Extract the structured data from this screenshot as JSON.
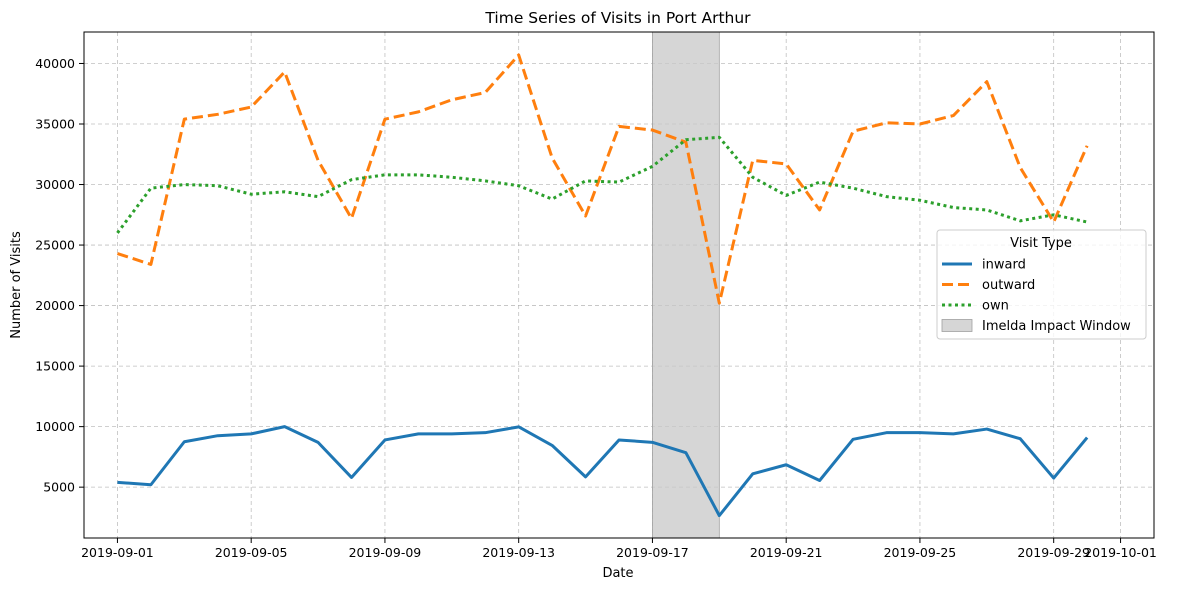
{
  "chart_data": {
    "type": "line",
    "title": "Time Series of Visits in Port Arthur",
    "xlabel": "Date",
    "ylabel": "Number of Visits",
    "x": [
      "2019-09-01",
      "2019-09-02",
      "2019-09-03",
      "2019-09-04",
      "2019-09-05",
      "2019-09-06",
      "2019-09-07",
      "2019-09-08",
      "2019-09-09",
      "2019-09-10",
      "2019-09-11",
      "2019-09-12",
      "2019-09-13",
      "2019-09-14",
      "2019-09-15",
      "2019-09-16",
      "2019-09-17",
      "2019-09-18",
      "2019-09-19",
      "2019-09-20",
      "2019-09-21",
      "2019-09-22",
      "2019-09-23",
      "2019-09-24",
      "2019-09-25",
      "2019-09-26",
      "2019-09-27",
      "2019-09-28",
      "2019-09-29",
      "2019-09-30"
    ],
    "x_ticks": [
      "2019-09-01",
      "2019-09-05",
      "2019-09-09",
      "2019-09-13",
      "2019-09-17",
      "2019-09-21",
      "2019-09-25",
      "2019-09-29",
      "2019-10-01"
    ],
    "x_range": [
      "2019-08-31",
      "2019-10-02"
    ],
    "y_ticks": [
      5000,
      10000,
      15000,
      20000,
      25000,
      30000,
      35000,
      40000
    ],
    "ylim": [
      800,
      42600
    ],
    "grid": true,
    "legend": {
      "title": "Visit Type",
      "placement": "center-right"
    },
    "series": [
      {
        "name": "inward",
        "style": "solid",
        "color": "#1f77b4",
        "values": [
          5400,
          5200,
          8750,
          9250,
          9400,
          10000,
          8700,
          5800,
          8900,
          9400,
          9400,
          9500,
          9980,
          8450,
          5850,
          8900,
          8700,
          7850,
          2650,
          6100,
          6850,
          5550,
          8950,
          9500,
          9500,
          9400,
          9800,
          9000,
          5750,
          9100
        ]
      },
      {
        "name": "outward",
        "style": "dashed",
        "color": "#ff7f0e",
        "values": [
          24300,
          23400,
          35400,
          35800,
          36400,
          39300,
          32000,
          27200,
          35400,
          36000,
          37000,
          37600,
          40700,
          32200,
          27400,
          34800,
          34500,
          33500,
          20200,
          32000,
          31700,
          27900,
          34400,
          35100,
          35000,
          35700,
          38500,
          31400,
          26900,
          33200
        ]
      },
      {
        "name": "own",
        "style": "dotted",
        "color": "#2ca02c",
        "values": [
          26000,
          29700,
          30000,
          29900,
          29200,
          29400,
          29000,
          30400,
          30800,
          30800,
          30600,
          30300,
          29900,
          28800,
          30300,
          30200,
          31500,
          33700,
          33900,
          30600,
          29100,
          30200,
          29700,
          29000,
          28700,
          28100,
          27900,
          27000,
          27500,
          26900
        ]
      }
    ],
    "shaded_region": {
      "label": "Imelda Impact Window",
      "start": "2019-09-17",
      "end": "2019-09-19",
      "color": "#c8c8c8"
    }
  }
}
